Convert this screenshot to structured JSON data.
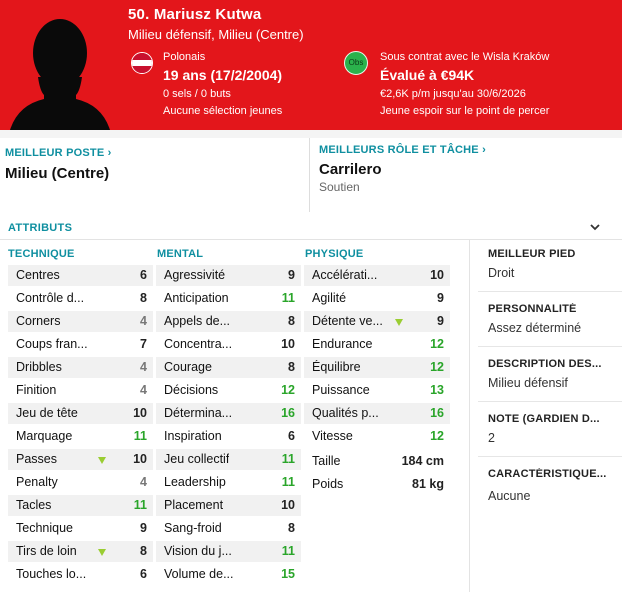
{
  "header": {
    "name": "50. Mariusz Kutwa",
    "positions": "Milieu défensif, Milieu (Centre)",
    "nationality": "Polonais",
    "age": "19 ans (17/2/2004)",
    "caps": "0 sels / 0 buts",
    "youth": "Aucune sélection jeunes",
    "club_logo": "Obs",
    "contract": "Sous contrat avec le Wisla Kraków",
    "value": "Évalué à €94K",
    "wage": "€2,6K p/m jusqu'au 30/6/2026",
    "status": "Jeune espoir sur le point de percer",
    "bg_color": "#e3161b"
  },
  "best_position": {
    "title": "MEILLEUR POSTE",
    "value": "Milieu (Centre)"
  },
  "best_role": {
    "title": "MEILLEURS RÔLE ET TÂCHE",
    "value": "Carrilero",
    "duty": "Soutien"
  },
  "attributes": {
    "title": "ATTRIBUTS",
    "technical": {
      "title": "TECHNIQUE",
      "items": [
        {
          "label": "Centres",
          "value": "6"
        },
        {
          "label": "Contrôle d...",
          "value": "8"
        },
        {
          "label": "Corners",
          "value": "4"
        },
        {
          "label": "Coups fran...",
          "value": "7"
        },
        {
          "label": "Dribbles",
          "value": "4"
        },
        {
          "label": "Finition",
          "value": "4"
        },
        {
          "label": "Jeu de tête",
          "value": "10"
        },
        {
          "label": "Marquage",
          "value": "11"
        },
        {
          "label": "Passes",
          "value": "10"
        },
        {
          "label": "Penalty",
          "value": "4"
        },
        {
          "label": "Tacles",
          "value": "11"
        },
        {
          "label": "Technique",
          "value": "9"
        },
        {
          "label": "Tirs de loin",
          "value": "8"
        },
        {
          "label": "Touches lo...",
          "value": "6"
        }
      ]
    },
    "mental": {
      "title": "MENTAL",
      "items": [
        {
          "label": "Agressivité",
          "value": "9"
        },
        {
          "label": "Anticipation",
          "value": "11"
        },
        {
          "label": "Appels de...",
          "value": "8"
        },
        {
          "label": "Concentra...",
          "value": "10"
        },
        {
          "label": "Courage",
          "value": "8"
        },
        {
          "label": "Décisions",
          "value": "12"
        },
        {
          "label": "Détermina...",
          "value": "16"
        },
        {
          "label": "Inspiration",
          "value": "6"
        },
        {
          "label": "Jeu collectif",
          "value": "11"
        },
        {
          "label": "Leadership",
          "value": "11"
        },
        {
          "label": "Placement",
          "value": "10"
        },
        {
          "label": "Sang-froid",
          "value": "8"
        },
        {
          "label": "Vision du j...",
          "value": "11"
        },
        {
          "label": "Volume de...",
          "value": "15"
        }
      ]
    },
    "physical": {
      "title": "PHYSIQUE",
      "items": [
        {
          "label": "Accélérati...",
          "value": "10"
        },
        {
          "label": "Agilité",
          "value": "9"
        },
        {
          "label": "Détente ve...",
          "value": "9"
        },
        {
          "label": "Endurance",
          "value": "12"
        },
        {
          "label": "Équilibre",
          "value": "12"
        },
        {
          "label": "Puissance",
          "value": "13"
        },
        {
          "label": "Qualités p...",
          "value": "16"
        },
        {
          "label": "Vitesse",
          "value": "12"
        }
      ],
      "height_label": "Taille",
      "height_value": "184 cm",
      "weight_label": "Poids",
      "weight_value": "81 kg"
    }
  },
  "side": {
    "foot_title": "MEILLEUR PIED",
    "foot_value": "Droit",
    "personality_title": "PERSONNALITÉ",
    "personality_value": "Assez déterminé",
    "description_title": "DESCRIPTION DES...",
    "description_value": "Milieu défensif",
    "rating_title": "NOTE (GARDIEN D...",
    "rating_value": "2",
    "traits_title": "CARACTÉRISTIQUE...",
    "traits_value": "Aucune"
  }
}
